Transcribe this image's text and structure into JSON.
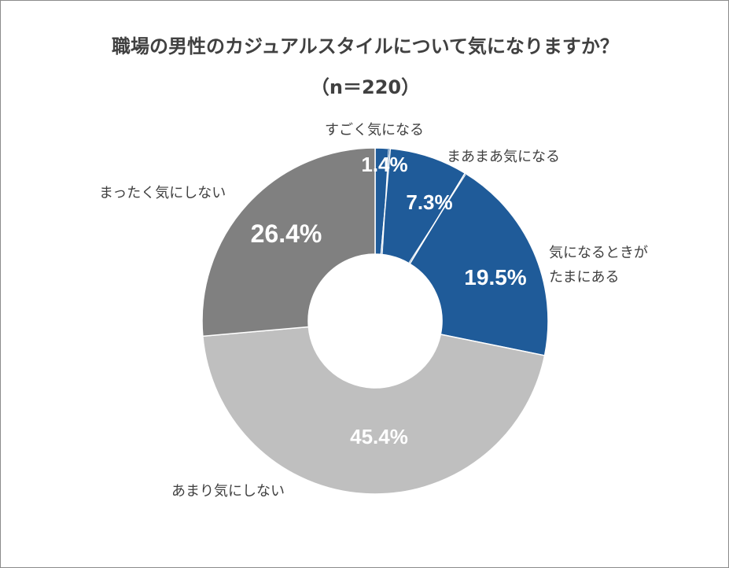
{
  "chart_data": {
    "type": "pie",
    "title": "職場の男性のカジュアルスタイルについて気になりますか？",
    "subtitle": "（n＝220）",
    "donut": true,
    "categories": [
      "すごく気になる",
      "まあまあ気になる",
      "気になるときがたまにある",
      "あまり気にしない",
      "まったく気にしない"
    ],
    "category_label_lines": [
      [
        "すごく気になる"
      ],
      [
        "まあまあ気になる"
      ],
      [
        "気になるときが",
        "たまにある"
      ],
      [
        "あまり気にしない"
      ],
      [
        "まったく気にしない"
      ]
    ],
    "values": [
      1.4,
      7.3,
      19.5,
      45.4,
      26.4
    ],
    "value_labels": [
      "1.4%",
      "7.3%",
      "19.5%",
      "45.4%",
      "26.4%"
    ],
    "colors": [
      "#1f5b99",
      "#1f5b99",
      "#1f5b99",
      "#bfbfbf",
      "#808080"
    ],
    "legend": "none"
  }
}
